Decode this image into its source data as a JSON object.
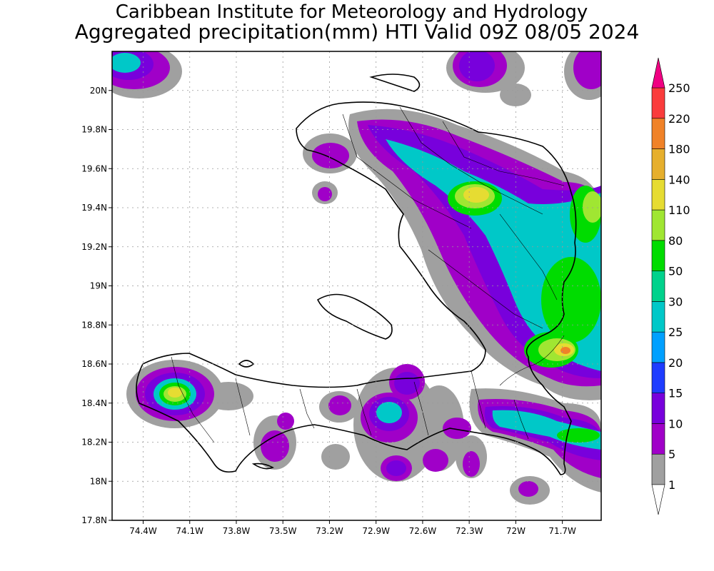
{
  "title": {
    "line1": "Caribbean Institute for Meteorology and Hydrology",
    "line2": "Aggregated precipitation(mm) HTI Valid 09Z 08/05 2024"
  },
  "map": {
    "lon_range": [
      -74.6,
      -71.45
    ],
    "lat_range": [
      17.8,
      20.2
    ],
    "lat_ticks": [
      {
        "value": 20.0,
        "label": "20N"
      },
      {
        "value": 19.8,
        "label": "19.8N"
      },
      {
        "value": 19.6,
        "label": "19.6N"
      },
      {
        "value": 19.4,
        "label": "19.4N"
      },
      {
        "value": 19.2,
        "label": "19.2N"
      },
      {
        "value": 19.0,
        "label": "19N"
      },
      {
        "value": 18.8,
        "label": "18.8N"
      },
      {
        "value": 18.6,
        "label": "18.6N"
      },
      {
        "value": 18.4,
        "label": "18.4N"
      },
      {
        "value": 18.2,
        "label": "18.2N"
      },
      {
        "value": 18.0,
        "label": "18N"
      },
      {
        "value": 17.8,
        "label": "17.8N"
      }
    ],
    "lon_ticks": [
      {
        "value": -74.4,
        "label": "74.4W"
      },
      {
        "value": -74.1,
        "label": "74.1W"
      },
      {
        "value": -73.8,
        "label": "73.8W"
      },
      {
        "value": -73.5,
        "label": "73.5W"
      },
      {
        "value": -73.2,
        "label": "73.2W"
      },
      {
        "value": -72.9,
        "label": "72.9W"
      },
      {
        "value": -72.6,
        "label": "72.6W"
      },
      {
        "value": -72.3,
        "label": "72.3W"
      },
      {
        "value": -72.0,
        "label": "72W"
      },
      {
        "value": -71.7,
        "label": "71.7W"
      }
    ],
    "grid": true
  },
  "legend": {
    "levels": [
      {
        "label": "1",
        "color": "#a0a0a0"
      },
      {
        "label": "5",
        "color": "#a000c8"
      },
      {
        "label": "10",
        "color": "#7800dc"
      },
      {
        "label": "15",
        "color": "#1e3cff"
      },
      {
        "label": "20",
        "color": "#00a0ff"
      },
      {
        "label": "25",
        "color": "#00c8c8"
      },
      {
        "label": "30",
        "color": "#00d28c"
      },
      {
        "label": "50",
        "color": "#00dc00"
      },
      {
        "label": "80",
        "color": "#a0e632"
      },
      {
        "label": "110",
        "color": "#e6dc32"
      },
      {
        "label": "140",
        "color": "#e6af2d"
      },
      {
        "label": "180",
        "color": "#f08228"
      },
      {
        "label": "220",
        "color": "#fa3c3c"
      },
      {
        "label": "250",
        "color": "#f00082"
      }
    ],
    "below_color": "#ffffff",
    "above_color": "#f00082"
  }
}
